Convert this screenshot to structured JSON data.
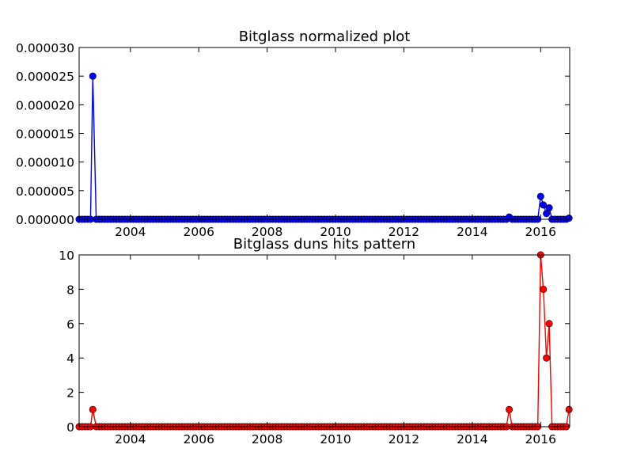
{
  "chart_data": [
    {
      "type": "line",
      "title": "Bitglass normalized plot",
      "xlabel": "",
      "ylabel": "",
      "xlim": [
        2002.5,
        2016.85
      ],
      "ylim": [
        0,
        3e-05
      ],
      "xticks": [
        2004,
        2006,
        2008,
        2010,
        2012,
        2014,
        2016
      ],
      "xtick_labels": [
        "2004",
        "2006",
        "2008",
        "2010",
        "2012",
        "2014",
        "2016"
      ],
      "yticks": [
        0,
        5e-06,
        1e-05,
        1.5e-05,
        2e-05,
        2.5e-05,
        3e-05
      ],
      "ytick_labels": [
        "0.000000",
        "0.000005",
        "0.000010",
        "0.000015",
        "0.000020",
        "0.000025",
        "0.000030"
      ],
      "grid": false,
      "color": "#0000ff",
      "marker": "circle",
      "x_start": 2002.5,
      "x_step": 0.08333,
      "baseline": 0,
      "points": [
        {
          "x": 2002.9,
          "y": 2.5e-05
        },
        {
          "x": 2015.08,
          "y": 4e-07
        },
        {
          "x": 2016.0,
          "y": 4e-06
        },
        {
          "x": 2016.08,
          "y": 2.5e-06
        },
        {
          "x": 2016.17,
          "y": 1e-06
        },
        {
          "x": 2016.25,
          "y": 2e-06
        },
        {
          "x": 2016.83,
          "y": 2e-07
        }
      ]
    },
    {
      "type": "line",
      "title": "Bitglass duns hits pattern",
      "xlabel": "",
      "ylabel": "",
      "xlim": [
        2002.5,
        2016.85
      ],
      "ylim": [
        0,
        10
      ],
      "xticks": [
        2004,
        2006,
        2008,
        2010,
        2012,
        2014,
        2016
      ],
      "xtick_labels": [
        "2004",
        "2006",
        "2008",
        "2010",
        "2012",
        "2014",
        "2016"
      ],
      "yticks": [
        0,
        2,
        4,
        6,
        8,
        10
      ],
      "ytick_labels": [
        "0",
        "2",
        "4",
        "6",
        "8",
        "10"
      ],
      "grid": false,
      "color": "#ff0000",
      "marker": "circle",
      "x_start": 2002.5,
      "x_step": 0.08333,
      "baseline": 0,
      "points": [
        {
          "x": 2002.9,
          "y": 1
        },
        {
          "x": 2015.08,
          "y": 1
        },
        {
          "x": 2016.0,
          "y": 10
        },
        {
          "x": 2016.08,
          "y": 8
        },
        {
          "x": 2016.17,
          "y": 4
        },
        {
          "x": 2016.25,
          "y": 6
        },
        {
          "x": 2016.83,
          "y": 1
        }
      ]
    }
  ]
}
